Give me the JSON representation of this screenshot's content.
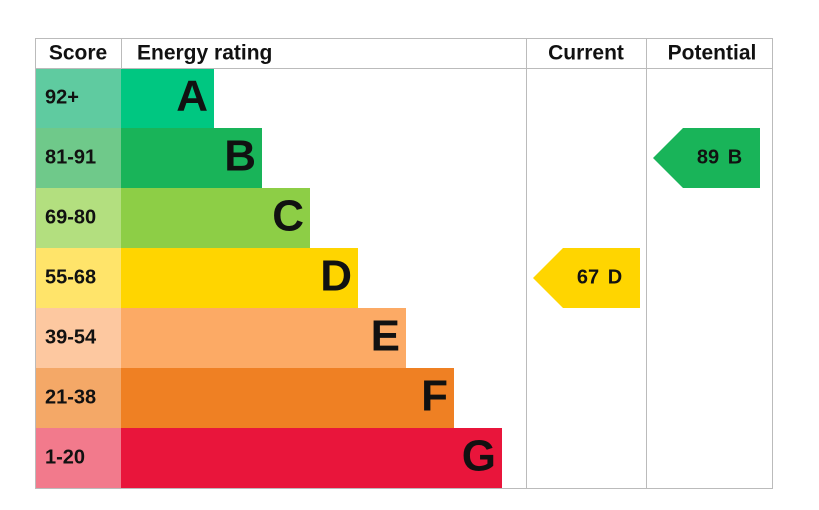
{
  "header": {
    "score": "Score",
    "energy_rating": "Energy rating",
    "current": "Current",
    "potential": "Potential"
  },
  "bands": [
    {
      "score": "92+",
      "letter": "A"
    },
    {
      "score": "81-91",
      "letter": "B"
    },
    {
      "score": "69-80",
      "letter": "C"
    },
    {
      "score": "55-68",
      "letter": "D"
    },
    {
      "score": "39-54",
      "letter": "E"
    },
    {
      "score": "21-38",
      "letter": "F"
    },
    {
      "score": "1-20",
      "letter": "G"
    }
  ],
  "current": {
    "score": "67",
    "rating": "D"
  },
  "potential": {
    "score": "89",
    "rating": "B"
  }
}
